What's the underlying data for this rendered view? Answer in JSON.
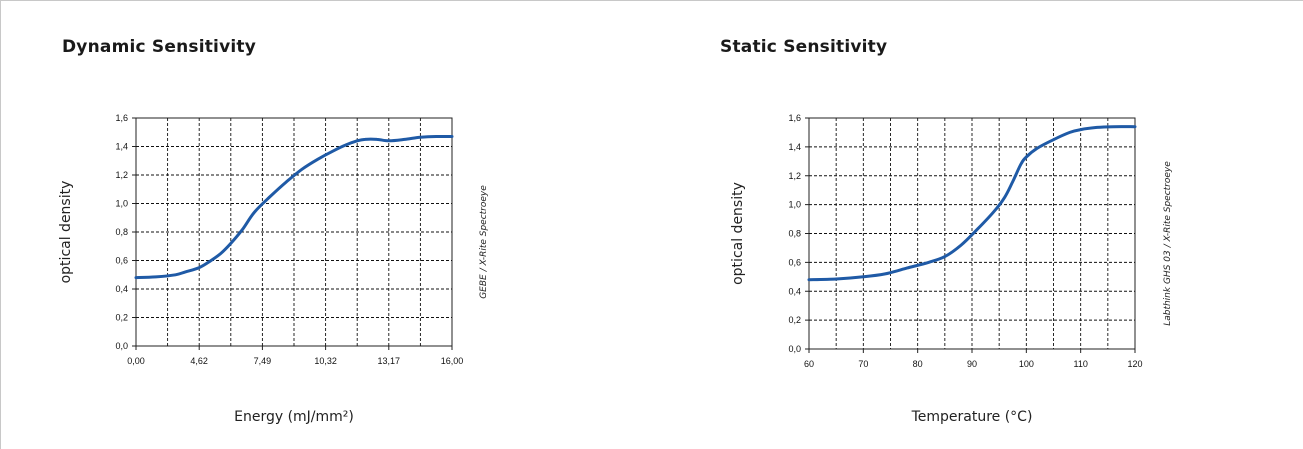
{
  "chart_data": [
    {
      "type": "line",
      "title": "Dynamic Sensitivity",
      "xlabel": "Energy (mJ/mm²)",
      "ylabel": "optical density",
      "note": "GEBE / X-Rite Spectroeye",
      "x_ticks": [
        "0,00",
        "4,62",
        "7,49",
        "10,32",
        "13,17",
        "16,00"
      ],
      "y_ticks": [
        "0,0",
        "0,2",
        "0,4",
        "0,6",
        "0,8",
        "1,0",
        "1,2",
        "1,4",
        "1,6"
      ],
      "ylim": [
        0,
        1.6
      ],
      "grid": true,
      "series": [
        {
          "color": "#1f5aa6",
          "x": [
            0.0,
            1.0,
            2.0,
            2.5,
            3.2,
            3.8,
            4.3,
            4.8,
            5.4,
            6.0,
            6.8,
            7.6,
            8.4,
            9.2,
            10.0,
            10.6,
            11.2,
            11.6,
            12.2,
            12.8,
            13.6,
            14.4,
            15.2,
            16.0
          ],
          "y": [
            0.48,
            0.485,
            0.5,
            0.52,
            0.55,
            0.6,
            0.65,
            0.72,
            0.82,
            0.94,
            1.05,
            1.15,
            1.24,
            1.31,
            1.37,
            1.41,
            1.44,
            1.45,
            1.45,
            1.44,
            1.45,
            1.465,
            1.47,
            1.47
          ]
        }
      ]
    },
    {
      "type": "line",
      "title": "Static Sensitivity",
      "xlabel": "Temperature (°C)",
      "ylabel": "optical density",
      "note": "Labthink GHS 03 / X-Rite Spectroeye",
      "x_ticks": [
        "60",
        "70",
        "80",
        "90",
        "100",
        "110",
        "120"
      ],
      "y_ticks": [
        "0,0",
        "0,2",
        "0,4",
        "0,6",
        "0,8",
        "1,0",
        "1,2",
        "1,4",
        "1,6"
      ],
      "xlim": [
        60,
        120
      ],
      "ylim": [
        0,
        1.6
      ],
      "grid": true,
      "series": [
        {
          "color": "#1f5aa6",
          "x": [
            60,
            65,
            70,
            74,
            78,
            82,
            85,
            88,
            91,
            94,
            96,
            97.5,
            99,
            100,
            102,
            105,
            108,
            110,
            113,
            116,
            120
          ],
          "y": [
            0.48,
            0.485,
            0.5,
            0.52,
            0.56,
            0.6,
            0.64,
            0.72,
            0.83,
            0.95,
            1.05,
            1.16,
            1.28,
            1.33,
            1.39,
            1.45,
            1.5,
            1.52,
            1.535,
            1.54,
            1.54
          ]
        }
      ]
    }
  ]
}
